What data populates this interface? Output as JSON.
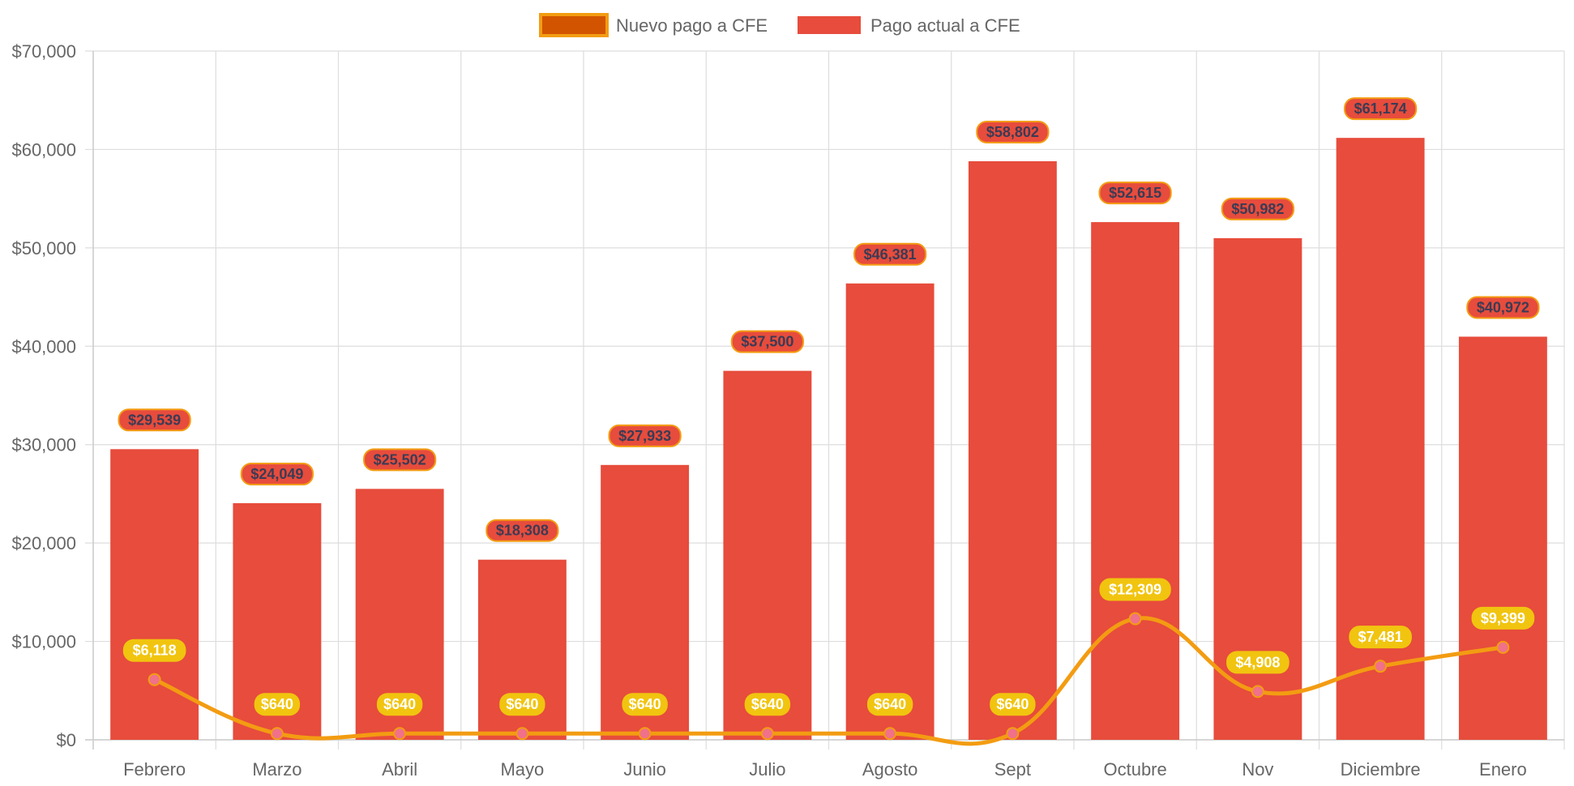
{
  "chart_data": {
    "type": "bar",
    "categories": [
      "Febrero",
      "Marzo",
      "Abril",
      "Mayo",
      "Junio",
      "Julio",
      "Agosto",
      "Sept",
      "Octubre",
      "Nov",
      "Diciembre",
      "Enero"
    ],
    "series": [
      {
        "name": "Nuevo pago a CFE",
        "kind": "line",
        "values": [
          6118,
          640,
          640,
          640,
          640,
          640,
          640,
          640,
          12309,
          4908,
          7481,
          9399
        ],
        "labels": [
          "$6,118",
          "$640",
          "$640",
          "$640",
          "$640",
          "$640",
          "$640",
          "$640",
          "$12,309",
          "$4,908",
          "$7,481",
          "$9,399"
        ],
        "color": "#f39c12",
        "point_color": "#f1708a",
        "label_bg": "#f1c40f"
      },
      {
        "name": "Pago actual a CFE",
        "kind": "bar",
        "values": [
          29539,
          24049,
          25502,
          18308,
          27933,
          37500,
          46381,
          58802,
          52615,
          50982,
          61174,
          40972
        ],
        "labels": [
          "$29,539",
          "$24,049",
          "$25,502",
          "$18,308",
          "$27,933",
          "$37,500",
          "$46,381",
          "$58,802",
          "$52,615",
          "$50,982",
          "$61,174",
          "$40,972"
        ],
        "color": "#e74c3c",
        "label_border": "#f39c12"
      }
    ],
    "legend": [
      {
        "label": "Nuevo pago a CFE",
        "fill": "#d35400",
        "border": "#f39c12"
      },
      {
        "label": "Pago actual a CFE",
        "fill": "#e74c3c",
        "border": "#e74c3c"
      }
    ],
    "legend_position": "top-center",
    "ylim": [
      0,
      70000
    ],
    "yticks": [
      0,
      10000,
      20000,
      30000,
      40000,
      50000,
      60000,
      70000
    ],
    "ytick_labels": [
      "$0",
      "$10,000",
      "$20,000",
      "$30,000",
      "$40,000",
      "$50,000",
      "$60,000",
      "$70,000"
    ],
    "grid": true,
    "title": "",
    "xlabel": "",
    "ylabel": ""
  }
}
